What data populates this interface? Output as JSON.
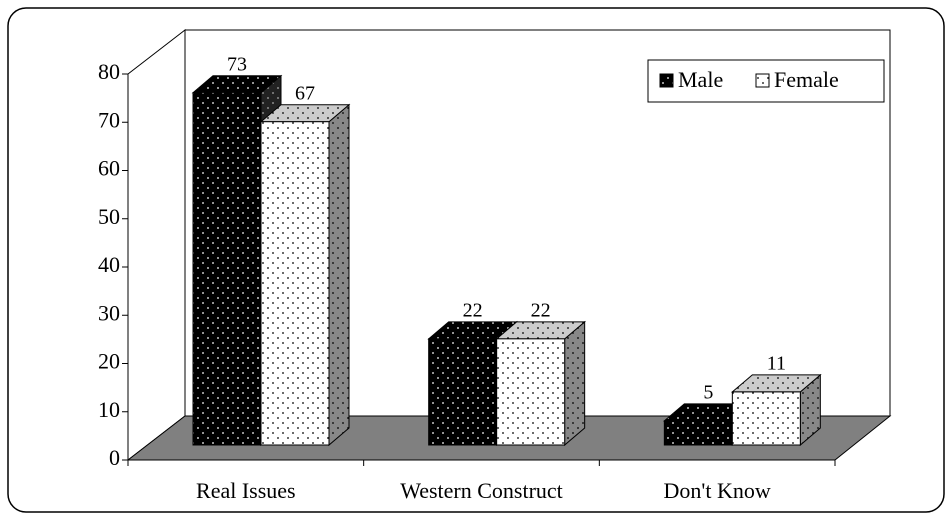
{
  "chart_data": {
    "type": "bar3d",
    "categories": [
      "Real Issues",
      "Western Construct",
      "Don't Know"
    ],
    "series": [
      {
        "name": "Male",
        "color": "#000000",
        "values": [
          73,
          22,
          5
        ]
      },
      {
        "name": "Female",
        "color": "#ffffff",
        "values": [
          67,
          22,
          11
        ]
      }
    ],
    "ylim": [
      0,
      80
    ],
    "yticks": [
      0,
      10,
      20,
      30,
      40,
      50,
      60,
      70,
      80
    ],
    "legend": "upper right"
  }
}
